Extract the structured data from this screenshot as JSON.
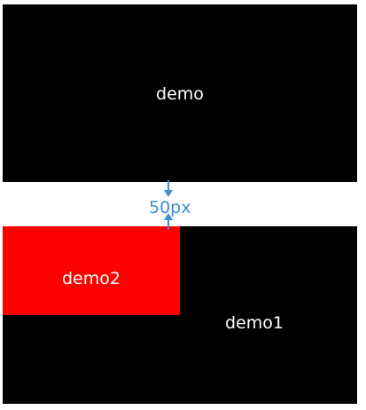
{
  "colors": {
    "box_dark": "#000000",
    "box_red": "#ff0000",
    "text_on_box": "#ffffff",
    "annotation": "#3b8fd9"
  },
  "boxes": {
    "top": {
      "label": "demo"
    },
    "bottom": {
      "label": "demo1"
    },
    "inner": {
      "label": "demo2"
    }
  },
  "gap": {
    "label": "50px",
    "icon": "double-arrow-vertical-icon"
  }
}
